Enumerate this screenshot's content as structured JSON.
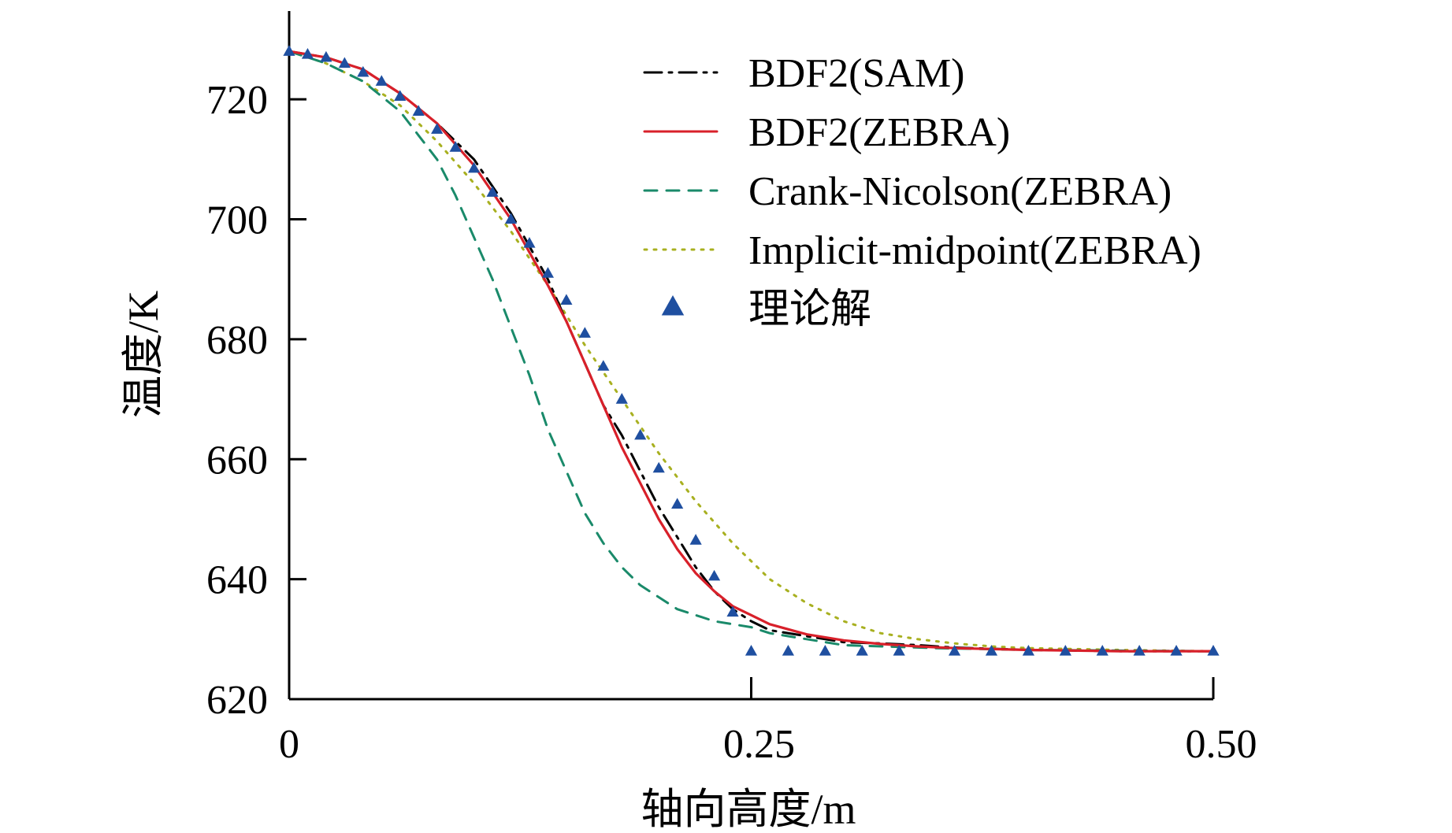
{
  "chart_data": {
    "type": "line",
    "title": "",
    "xlabel": "轴向高度/m",
    "ylabel": "温度/K",
    "xlim": [
      0,
      0.5
    ],
    "ylim": [
      620,
      730
    ],
    "xticks": [
      0,
      0.25,
      0.5
    ],
    "xtick_labels": [
      "0",
      "0.25",
      "0.50"
    ],
    "yticks": [
      620,
      640,
      660,
      680,
      700,
      720
    ],
    "ytick_labels": [
      "620",
      "640",
      "660",
      "680",
      "700",
      "720"
    ],
    "grid": false,
    "legend_position": "top-right",
    "series": [
      {
        "name": "BDF2(SAM)",
        "style": "dashdot",
        "color": "#000000",
        "x": [
          0,
          0.02,
          0.04,
          0.06,
          0.08,
          0.1,
          0.12,
          0.14,
          0.16,
          0.17,
          0.18,
          0.19,
          0.2,
          0.21,
          0.22,
          0.23,
          0.24,
          0.25,
          0.26,
          0.28,
          0.3,
          0.32,
          0.34,
          0.36,
          0.38,
          0.4,
          0.45,
          0.5
        ],
        "y": [
          728,
          727,
          725,
          721,
          716,
          710,
          701,
          690,
          676,
          669,
          664,
          658,
          652,
          647,
          642,
          638,
          635,
          633,
          631.5,
          630.5,
          629.5,
          629.3,
          629,
          628.6,
          628.4,
          628.2,
          628,
          628
        ]
      },
      {
        "name": "BDF2(ZEBRA)",
        "style": "solid",
        "color": "#d8202a",
        "x": [
          0,
          0.02,
          0.04,
          0.06,
          0.08,
          0.1,
          0.12,
          0.14,
          0.15,
          0.16,
          0.17,
          0.18,
          0.19,
          0.2,
          0.21,
          0.22,
          0.23,
          0.24,
          0.25,
          0.26,
          0.28,
          0.3,
          0.32,
          0.34,
          0.36,
          0.4,
          0.45,
          0.5
        ],
        "y": [
          728,
          727,
          725,
          721,
          716,
          709,
          700,
          689,
          683,
          676,
          669,
          662,
          656,
          650,
          645,
          641,
          638,
          635.5,
          634,
          632.5,
          630.8,
          629.8,
          629.2,
          628.8,
          628.5,
          628.2,
          628,
          628
        ]
      },
      {
        "name": "Crank-Nicolson(ZEBRA)",
        "style": "dashed",
        "color": "#1a8a6a",
        "x": [
          0,
          0.02,
          0.04,
          0.06,
          0.07,
          0.08,
          0.09,
          0.1,
          0.11,
          0.12,
          0.13,
          0.14,
          0.15,
          0.16,
          0.17,
          0.18,
          0.19,
          0.2,
          0.21,
          0.22,
          0.23,
          0.24,
          0.25,
          0.26,
          0.28,
          0.3,
          0.35,
          0.4,
          0.5
        ],
        "y": [
          728,
          726,
          723,
          718,
          714,
          710,
          704,
          697,
          690,
          682,
          674,
          665,
          658,
          651,
          646,
          642,
          639,
          637,
          635,
          634,
          633,
          632.5,
          632,
          631,
          630,
          629,
          628.5,
          628.2,
          628
        ]
      },
      {
        "name": "Implicit-midpoint(ZEBRA)",
        "style": "dotted",
        "color": "#a8b020",
        "x": [
          0,
          0.02,
          0.04,
          0.06,
          0.08,
          0.1,
          0.12,
          0.14,
          0.16,
          0.18,
          0.2,
          0.22,
          0.24,
          0.26,
          0.28,
          0.3,
          0.32,
          0.34,
          0.36,
          0.38,
          0.4,
          0.45,
          0.5
        ],
        "y": [
          728,
          726,
          723,
          719,
          713,
          706,
          698,
          689,
          679,
          670,
          661,
          653,
          646,
          640,
          636,
          633,
          631,
          630,
          629.3,
          628.8,
          628.5,
          628.2,
          628
        ]
      },
      {
        "name": "理论解",
        "style": "marker",
        "color": "#1f4fa0",
        "x": [
          0,
          0.01,
          0.02,
          0.03,
          0.04,
          0.05,
          0.06,
          0.07,
          0.08,
          0.09,
          0.1,
          0.11,
          0.12,
          0.13,
          0.14,
          0.15,
          0.16,
          0.17,
          0.18,
          0.19,
          0.2,
          0.21,
          0.22,
          0.23,
          0.24,
          0.25,
          0.27,
          0.29,
          0.31,
          0.33,
          0.36,
          0.38,
          0.4,
          0.42,
          0.44,
          0.46,
          0.48,
          0.5
        ],
        "y": [
          728,
          727.5,
          727,
          726,
          724.5,
          723,
          720.5,
          718,
          715,
          712,
          708.5,
          704.5,
          700,
          696,
          691,
          686.5,
          681,
          675.5,
          670,
          664,
          658.5,
          652.5,
          646.5,
          640.5,
          634.5,
          628,
          628,
          628,
          628,
          628,
          628,
          628,
          628,
          628,
          628,
          628,
          628,
          628
        ]
      }
    ]
  }
}
